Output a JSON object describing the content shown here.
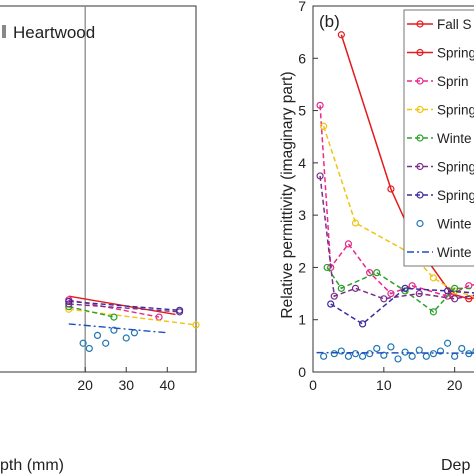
{
  "chart_data": [
    {
      "type": "line",
      "panel": "left (cropped)",
      "annotation": "Heartwood",
      "xlabel": "pth (mm)",
      "xlim": [
        -1,
        47
      ],
      "ylim": [
        0,
        7
      ],
      "xticks": [
        "20",
        "30",
        "40"
      ],
      "xtick_values": [
        20,
        30,
        40
      ],
      "vline": 20,
      "series": [
        {
          "name": "s1",
          "color": "#e41a1c",
          "style": "solid",
          "marker": false,
          "x": [
            16,
            42
          ],
          "y": [
            1.45,
            1.1
          ]
        },
        {
          "name": "s2",
          "color": "#e7298a",
          "style": "dashed",
          "marker": true,
          "x": [
            16,
            38
          ],
          "y": [
            1.38,
            1.05
          ]
        },
        {
          "name": "s3",
          "color": "#f1c40f",
          "style": "dashed",
          "marker": true,
          "x": [
            16,
            47
          ],
          "y": [
            1.2,
            0.9
          ]
        },
        {
          "name": "s4",
          "color": "#2ca02c",
          "style": "dashed",
          "marker": true,
          "x": [
            16,
            27
          ],
          "y": [
            1.25,
            1.05
          ]
        },
        {
          "name": "s5",
          "color": "#7b2d8b",
          "style": "dashed",
          "marker": true,
          "x": [
            16,
            43
          ],
          "y": [
            1.3,
            1.15
          ]
        },
        {
          "name": "s6",
          "color": "#3b2a9e",
          "style": "dashed",
          "marker": true,
          "x": [
            16,
            43
          ],
          "y": [
            1.35,
            1.18
          ]
        },
        {
          "name": "s7",
          "color": "#1f77b4",
          "style": "none",
          "marker": true,
          "x": [
            19.5,
            21,
            23,
            25,
            27,
            30,
            32
          ],
          "y": [
            0.55,
            0.45,
            0.7,
            0.55,
            0.8,
            0.65,
            0.75
          ]
        },
        {
          "name": "s8",
          "color": "#1f4fbf",
          "style": "dashdot",
          "marker": false,
          "x": [
            16,
            40
          ],
          "y": [
            0.92,
            0.75
          ]
        }
      ]
    },
    {
      "type": "line",
      "panel": "right (cropped)",
      "panel_label": "(b)",
      "xlabel": "Dep",
      "ylabel": "Relative permittivity (imaginary part)",
      "xlim": [
        0,
        24
      ],
      "ylim": [
        0,
        7
      ],
      "xticks": [
        "0",
        "10",
        "20"
      ],
      "xtick_values": [
        0,
        10,
        20
      ],
      "yticks": [
        "0",
        "1",
        "2",
        "3",
        "4",
        "5",
        "6",
        "7"
      ],
      "ytick_values": [
        0,
        1,
        2,
        3,
        4,
        5,
        6,
        7
      ],
      "legend_position": "top-right",
      "legend": [
        {
          "label": "Fall S",
          "color": "#e41a1c",
          "style": "solid",
          "marker": "open-circle"
        },
        {
          "label": "Spring",
          "color": "#e41a1c",
          "style": "solid",
          "marker": "open-circle"
        },
        {
          "label": "Sprin",
          "color": "#e7298a",
          "style": "dashed",
          "marker": "open-circle"
        },
        {
          "label": "Spring",
          "color": "#f1c40f",
          "style": "dashed",
          "marker": "open-circle"
        },
        {
          "label": "Winte",
          "color": "#2ca02c",
          "style": "dashed",
          "marker": "open-circle"
        },
        {
          "label": "Spring",
          "color": "#7b2d8b",
          "style": "dashed",
          "marker": "open-circle"
        },
        {
          "label": "Spring",
          "color": "#3b2a9e",
          "style": "dashed",
          "marker": "open-circle"
        },
        {
          "label": "Winte",
          "color": "#1f77b4",
          "style": "none",
          "marker": "open-circle"
        },
        {
          "label": "Winte",
          "color": "#1f4fbf",
          "style": "dashdot",
          "marker": "none"
        }
      ],
      "series": [
        {
          "name": "Spring",
          "color": "#e41a1c",
          "style": "solid",
          "marker": true,
          "x": [
            4,
            11,
            14.5,
            19.5,
            22,
            24
          ],
          "y": [
            6.45,
            3.5,
            2.45,
            1.5,
            1.4,
            1.45
          ]
        },
        {
          "name": "Sprin",
          "color": "#e7298a",
          "style": "dashed",
          "marker": true,
          "x": [
            1,
            2.5,
            5,
            8,
            11,
            14,
            19,
            22,
            24
          ],
          "y": [
            5.1,
            2.0,
            2.45,
            1.9,
            1.5,
            1.65,
            1.45,
            1.65,
            1.7
          ]
        },
        {
          "name": "Spring",
          "color": "#f1c40f",
          "style": "dashed",
          "marker": true,
          "x": [
            1.5,
            6,
            14,
            17,
            20,
            24
          ],
          "y": [
            4.7,
            2.85,
            2.25,
            1.8,
            1.55,
            1.4
          ]
        },
        {
          "name": "Winte",
          "color": "#2ca02c",
          "style": "dashed",
          "marker": true,
          "x": [
            2,
            4,
            9,
            13,
            17,
            20,
            24
          ],
          "y": [
            2.0,
            1.6,
            1.9,
            1.55,
            1.15,
            1.6,
            1.6
          ]
        },
        {
          "name": "Spring",
          "color": "#7b2d8b",
          "style": "dashed",
          "marker": true,
          "x": [
            1,
            3,
            6,
            10,
            15,
            20,
            24
          ],
          "y": [
            3.75,
            1.45,
            1.6,
            1.4,
            1.5,
            1.4,
            1.5
          ]
        },
        {
          "name": "Spring",
          "color": "#3b2a9e",
          "style": "dashed",
          "marker": true,
          "x": [
            2.5,
            7,
            13,
            19,
            24
          ],
          "y": [
            1.3,
            0.92,
            1.6,
            1.55,
            1.5
          ]
        },
        {
          "name": "Winte",
          "color": "#1f77b4",
          "style": "none",
          "marker": true,
          "x": [
            1.5,
            3,
            4,
            5,
            6,
            7,
            8,
            9,
            10,
            11,
            12,
            13,
            14,
            15,
            16,
            17,
            18,
            19,
            20,
            21,
            22,
            23
          ],
          "y": [
            0.3,
            0.35,
            0.4,
            0.3,
            0.35,
            0.3,
            0.35,
            0.45,
            0.32,
            0.48,
            0.25,
            0.38,
            0.3,
            0.42,
            0.3,
            0.35,
            0.4,
            0.55,
            0.3,
            0.45,
            0.35,
            0.4
          ]
        },
        {
          "name": "Winte",
          "color": "#1f4fbf",
          "style": "dashdot",
          "marker": false,
          "x": [
            0.5,
            24
          ],
          "y": [
            0.37,
            0.36
          ]
        }
      ]
    }
  ]
}
